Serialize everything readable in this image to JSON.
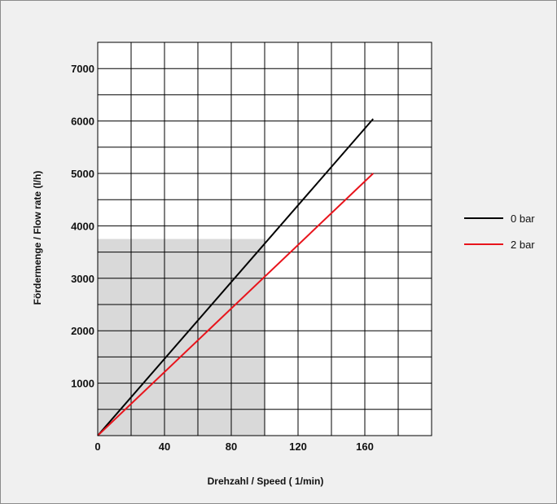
{
  "chart_data": {
    "type": "line",
    "xlabel": "Drehzahl / Speed ( 1/min)",
    "ylabel": "Fördermenge / Flow rate (l/h)",
    "xlim": [
      0,
      200
    ],
    "ylim": [
      0,
      7500
    ],
    "xticks": [
      "0",
      "40",
      "80",
      "120",
      "160"
    ],
    "yticks": [
      "1000",
      "2000",
      "3000",
      "4000",
      "5000",
      "6000",
      "7000"
    ],
    "grid": true,
    "legend_position": "right",
    "shaded_region": {
      "x": [
        0,
        100
      ],
      "y": [
        0,
        3750
      ],
      "color": "#d9d9d9"
    },
    "series": [
      {
        "name": "0 bar",
        "color": "#000000",
        "x": [
          0,
          165
        ],
        "y": [
          0,
          6040
        ]
      },
      {
        "name": "2 bar",
        "color": "#e8141c",
        "x": [
          0,
          165
        ],
        "y": [
          0,
          5000
        ]
      }
    ]
  }
}
